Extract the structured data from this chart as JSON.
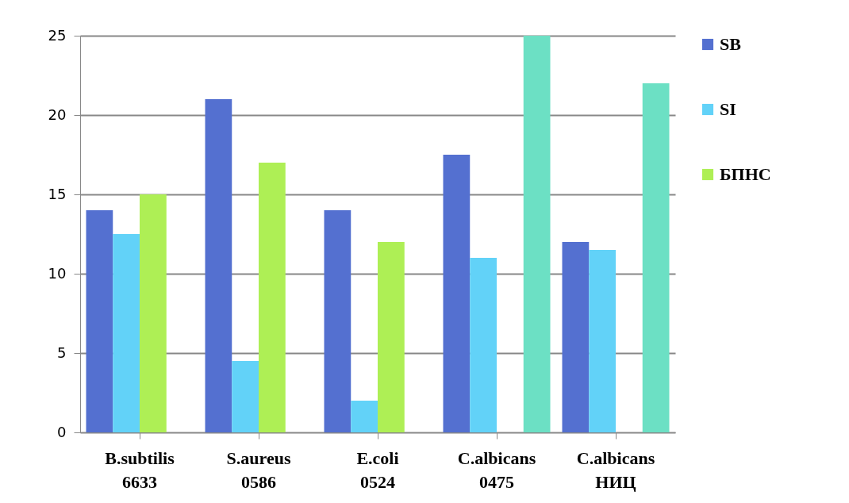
{
  "chart_data": {
    "type": "bar",
    "categories": [
      "B.subtilis 6633",
      "S.aureus 0586",
      "E.coli 0524",
      "C.albicans 0475",
      "C.albicans НИЦ"
    ],
    "series": [
      {
        "name": "SB",
        "color": "#5470d0",
        "values": [
          14,
          21,
          14,
          17.5,
          12
        ]
      },
      {
        "name": "SI",
        "color": "#62d2f8",
        "values": [
          12.5,
          4.5,
          2,
          11,
          11.5
        ]
      },
      {
        "name": "БПНС",
        "color": "#aeef55",
        "values": [
          15,
          17,
          12,
          0,
          0
        ]
      },
      {
        "color": "#6ce0c4",
        "values": [
          0,
          0,
          0,
          25,
          22
        ]
      }
    ],
    "ylim": [
      0,
      25
    ],
    "yticks": [
      0,
      5,
      10,
      15,
      20,
      25
    ],
    "grid": "y",
    "legend": "right"
  }
}
